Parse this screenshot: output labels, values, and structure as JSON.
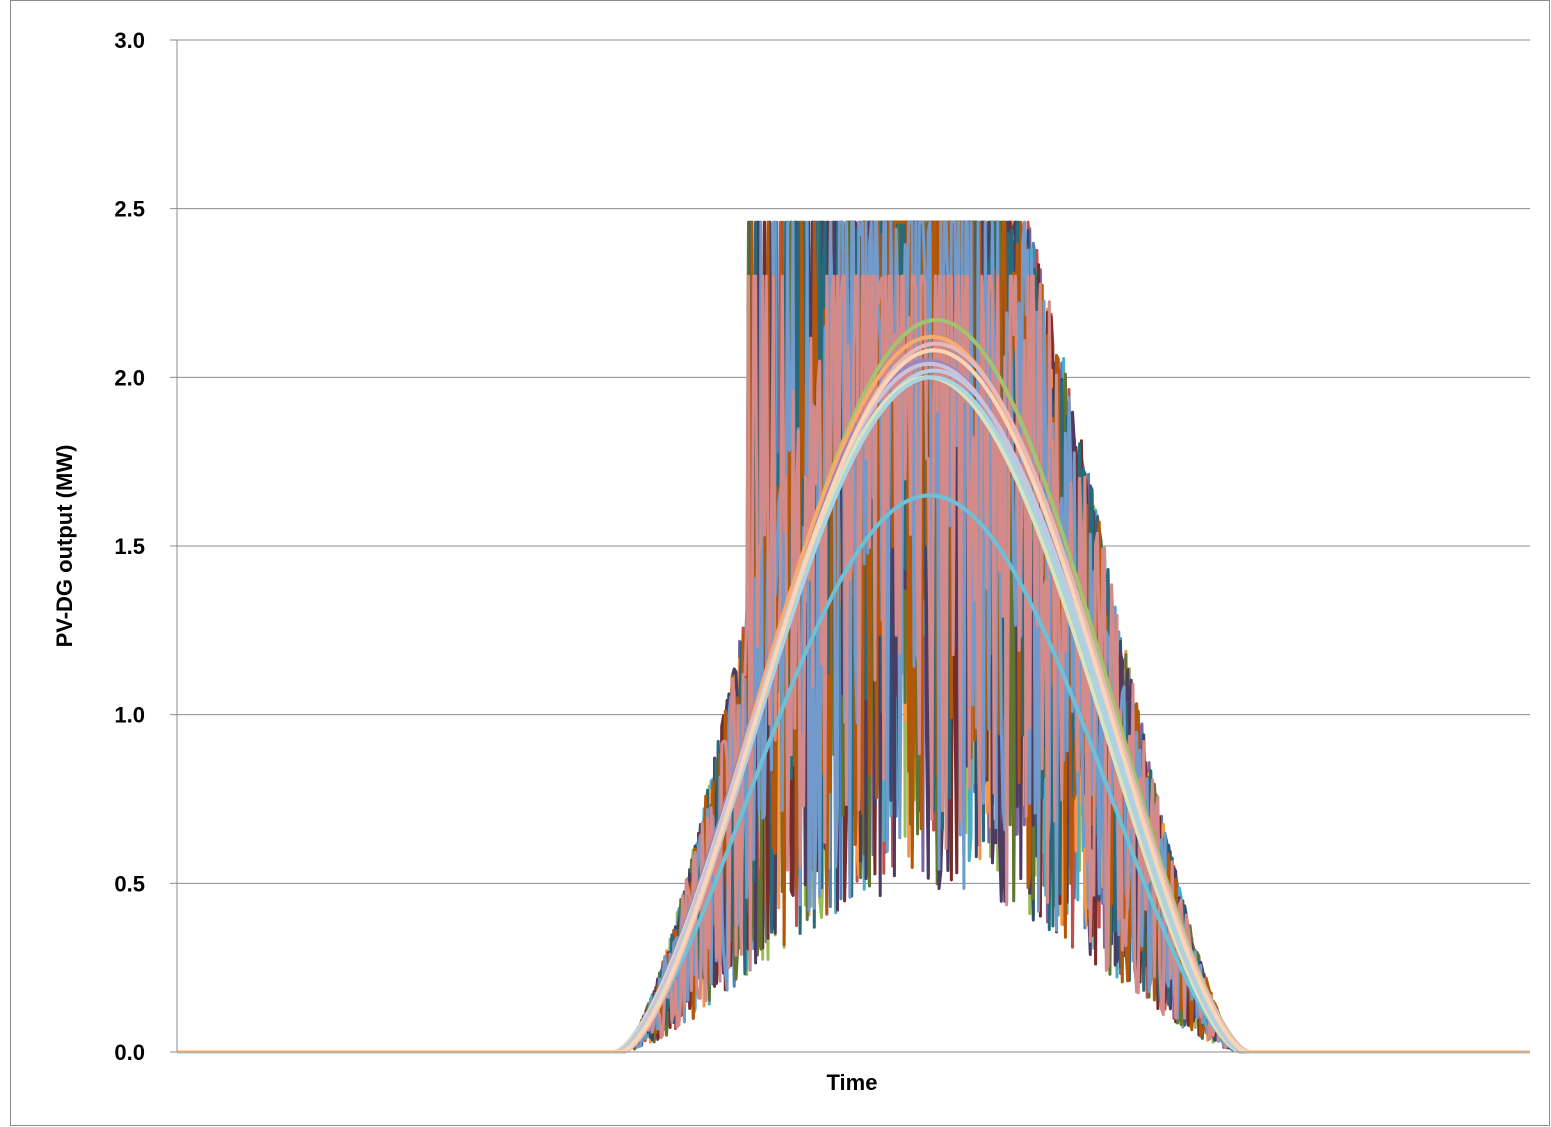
{
  "chart_data": {
    "type": "line",
    "title": "",
    "xlabel": "Time",
    "ylabel": "PV-DG output  (MW)",
    "ylim": [
      0,
      3.0
    ],
    "y_ticks": [
      "0.0",
      "0.5",
      "1.0",
      "1.5",
      "2.0",
      "2.5",
      "3.0"
    ],
    "x_ticks": [],
    "grid": "horizontal",
    "legend": "none",
    "x_points": 96,
    "x_note_hidden": "time axis unlabeled; x is sample index 0-95 (15-min intervals over one day)",
    "clear_sky_peak_mw": 2.15,
    "capacity_cap_mw": 2.46,
    "sunrise_index": 31,
    "sunset_index": 75,
    "series": [
      {
        "color": "#4f81bd",
        "profile": "variable",
        "peak": 2.46
      },
      {
        "color": "#c0504d",
        "profile": "variable",
        "peak": 2.46
      },
      {
        "color": "#9bbb59",
        "profile": "variable",
        "peak": 2.46
      },
      {
        "color": "#8064a2",
        "profile": "variable",
        "peak": 2.46
      },
      {
        "color": "#4bacc6",
        "profile": "variable",
        "peak": 2.46
      },
      {
        "color": "#f79646",
        "profile": "variable",
        "peak": 2.46
      },
      {
        "color": "#2c4d75",
        "profile": "variable",
        "peak": 2.46
      },
      {
        "color": "#772c2a",
        "profile": "variable",
        "peak": 2.46
      },
      {
        "color": "#5f7530",
        "profile": "variable",
        "peak": 2.46
      },
      {
        "color": "#4d3b62",
        "profile": "variable",
        "peak": 2.46
      },
      {
        "color": "#276a7c",
        "profile": "variable",
        "peak": 2.46
      },
      {
        "color": "#b65708",
        "profile": "variable",
        "peak": 2.46
      },
      {
        "color": "#729aca",
        "profile": "variable",
        "peak": 2.46
      },
      {
        "color": "#d38a88",
        "profile": "variable",
        "peak": 2.3
      },
      {
        "color": "#a5c26f",
        "profile": "smooth",
        "peak": 2.17
      },
      {
        "color": "#9d86b9",
        "profile": "smooth",
        "peak": 2.05
      },
      {
        "color": "#6ec0d6",
        "profile": "smooth",
        "peak": 1.65
      },
      {
        "color": "#f9ab6b",
        "profile": "smooth",
        "peak": 2.12
      },
      {
        "color": "#b9cde5",
        "profile": "smooth",
        "peak": 2.02
      },
      {
        "color": "#e6b9b8",
        "profile": "smooth",
        "peak": 2.1
      },
      {
        "color": "#d7e4bd",
        "profile": "smooth",
        "peak": 2.0
      },
      {
        "color": "#ccc1da",
        "profile": "smooth",
        "peak": 2.04
      },
      {
        "color": "#a9d4e0",
        "profile": "smooth",
        "peak": 2.0
      },
      {
        "color": "#fcd5b5",
        "profile": "smooth",
        "peak": 2.08
      }
    ]
  }
}
